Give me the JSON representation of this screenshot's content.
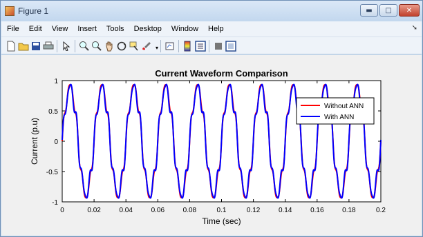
{
  "window": {
    "title": "Figure 1",
    "controls": {
      "minimize": "▬",
      "maximize": "□",
      "close": "✕"
    }
  },
  "menu": [
    "File",
    "Edit",
    "View",
    "Insert",
    "Tools",
    "Desktop",
    "Window",
    "Help"
  ],
  "toolbar_icons": [
    "new-file-icon",
    "open-folder-icon",
    "save-icon",
    "print-icon",
    "pointer-icon",
    "zoom-in-icon",
    "zoom-out-icon",
    "pan-icon",
    "rotate-3d-icon",
    "data-cursor-icon",
    "brush-icon",
    "link-plot-icon",
    "insert-colorbar-icon",
    "insert-legend-icon",
    "hide-plot-tools-icon",
    "show-plot-tools-icon"
  ],
  "chart_data": {
    "type": "line",
    "title": "Current Waveform Comparison",
    "xlabel": "Time (sec)",
    "ylabel": "Current (p.u)",
    "xlim": [
      0,
      0.2
    ],
    "ylim": [
      -1,
      1
    ],
    "xticks": [
      "0",
      "0.02",
      "0.04",
      "0.06",
      "0.08",
      "0.1",
      "0.12",
      "0.14",
      "0.16",
      "0.18",
      "0.2"
    ],
    "yticks": [
      "1",
      "0.5",
      "0",
      "-0.5",
      "-1"
    ],
    "grid": false,
    "legend_position": "top-right",
    "frequency_hz": 50,
    "series": [
      {
        "name": "Without ANN",
        "color": "#ff0000",
        "amplitude": 0.9,
        "ripple": 0.08
      },
      {
        "name": "With ANN",
        "color": "#0000ff",
        "amplitude": 0.88,
        "ripple": 0.1
      }
    ]
  }
}
